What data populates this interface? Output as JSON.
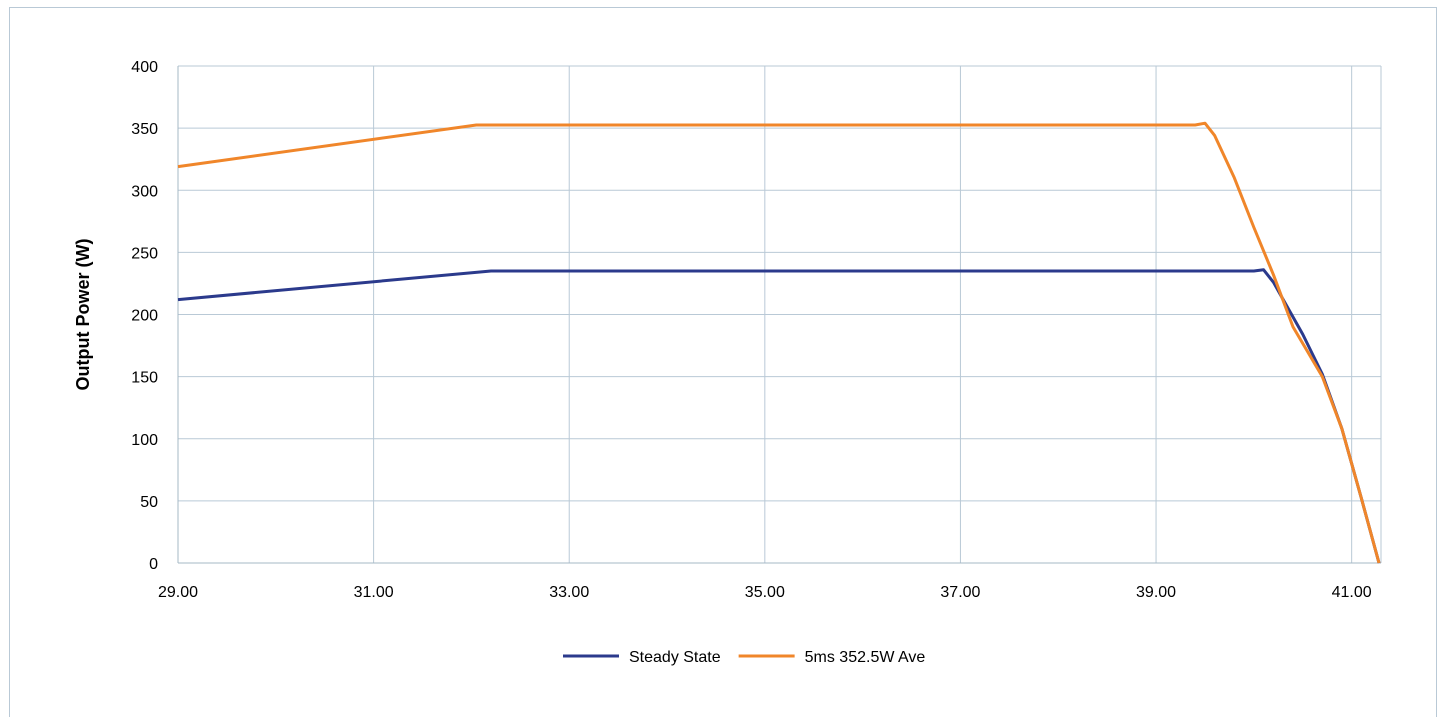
{
  "chart_data": {
    "type": "line",
    "title": "",
    "xlabel": "",
    "ylabel": "Output Power (W)",
    "xlim": [
      29.0,
      41.3
    ],
    "ylim": [
      0,
      400
    ],
    "x_ticks": [
      29.0,
      31.0,
      33.0,
      35.0,
      37.0,
      39.0,
      41.0
    ],
    "x_tick_labels": [
      "29.00",
      "31.00",
      "33.00",
      "35.00",
      "37.00",
      "39.00",
      "41.00"
    ],
    "y_ticks": [
      0,
      50,
      100,
      150,
      200,
      250,
      300,
      350,
      400
    ],
    "y_tick_labels": [
      "0",
      "50",
      "100",
      "150",
      "200",
      "250",
      "300",
      "350",
      "400"
    ],
    "grid": true,
    "legend_position": "bottom",
    "series": [
      {
        "name": "Steady State",
        "color": "#2b3a8c",
        "points": [
          [
            29.0,
            212
          ],
          [
            32.2,
            235
          ],
          [
            40.0,
            235
          ],
          [
            40.1,
            236
          ],
          [
            40.2,
            226
          ],
          [
            40.3,
            212
          ],
          [
            40.5,
            184
          ],
          [
            40.7,
            152
          ],
          [
            40.9,
            108
          ],
          [
            41.1,
            52
          ],
          [
            41.28,
            0
          ]
        ]
      },
      {
        "name": "5ms 352.5W Ave",
        "color": "#f0862a",
        "points": [
          [
            29.0,
            319
          ],
          [
            32.05,
            352.5
          ],
          [
            39.4,
            352.5
          ],
          [
            39.5,
            354
          ],
          [
            39.6,
            344
          ],
          [
            39.8,
            310
          ],
          [
            40.0,
            270
          ],
          [
            40.2,
            232
          ],
          [
            40.4,
            190
          ],
          [
            40.7,
            150
          ],
          [
            40.9,
            108
          ],
          [
            41.1,
            52
          ],
          [
            41.28,
            0
          ]
        ]
      }
    ]
  }
}
